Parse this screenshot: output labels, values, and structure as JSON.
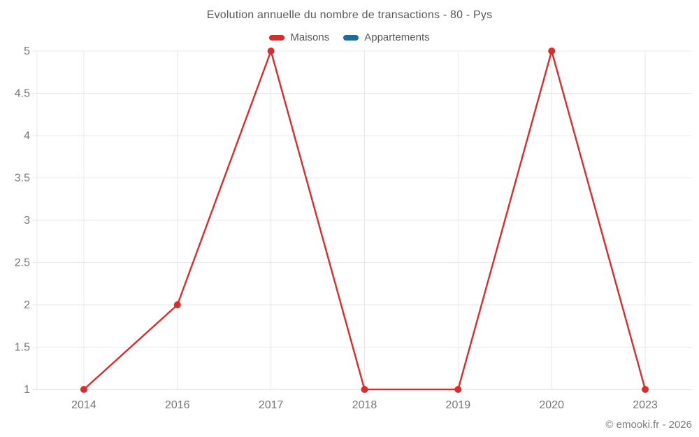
{
  "watermark": {
    "text": "© emooki.fr - 2026"
  },
  "legend": {
    "items": [
      {
        "label": "Maisons",
        "color": "#d92c2e"
      },
      {
        "label": "Appartements",
        "color": "#1a6d9e"
      }
    ]
  },
  "colors": {
    "background": "#ffffff",
    "grid": "#e8e8e8",
    "axis": "#d9d9d9",
    "tick_label": "#77777a",
    "text": "#59595b",
    "watermark": "#7d7d81"
  },
  "chart_data": {
    "type": "line",
    "title": "Evolution annuelle du nombre de transactions - 80 - Pys",
    "categories": [
      "2014",
      "2016",
      "2017",
      "2018",
      "2019",
      "2020",
      "2023"
    ],
    "series": [
      {
        "name": "Maisons",
        "color": "#d92c2e",
        "values": [
          1,
          2,
          5,
          1,
          1,
          5,
          1
        ]
      },
      {
        "name": "Appartements",
        "color": "#1a6d9e",
        "values": []
      }
    ],
    "ylim": [
      1,
      5
    ],
    "ytick_step": 0.5,
    "grid": true,
    "legend_position": "top",
    "marker": "circle",
    "marker_radius": 5,
    "line_width": 2.4
  }
}
